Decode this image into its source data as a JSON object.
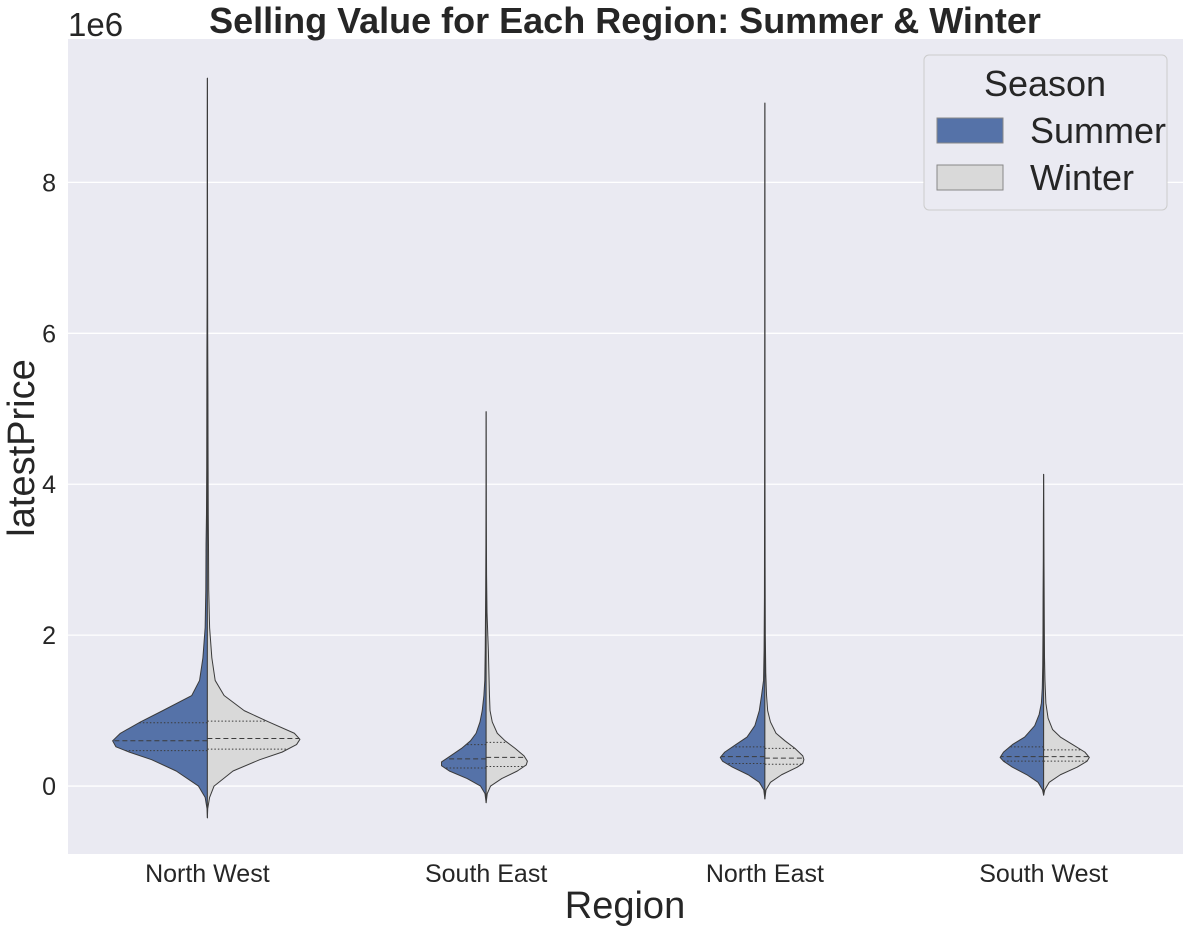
{
  "chart_data": {
    "type": "violin",
    "title": "Selling Value for Each Region: Summer & Winter",
    "xlabel": "Region",
    "ylabel": "latestPrice",
    "y_offset_label": "1e6",
    "categories": [
      "North West",
      "South East",
      "North East",
      "South West"
    ],
    "ylim": [
      -0.9,
      9.9
    ],
    "yticks": [
      0,
      2,
      4,
      6,
      8
    ],
    "yunit_multiplier": 1000000,
    "grid": true,
    "split": true,
    "inner": "quartile",
    "legend": {
      "title": "Season",
      "position": "top-right",
      "entries": [
        "Summer",
        "Winter"
      ]
    },
    "colors": {
      "background": "#eaeaf2",
      "grid": "#ffffff",
      "Summer": "#5572a8",
      "Winter": "#d9d9d9",
      "outline": "#3b3b3b"
    },
    "series": [
      {
        "name": "Summer",
        "quartiles": [
          [
            0.47,
            0.6,
            0.84
          ],
          [
            0.24,
            0.36,
            0.55
          ],
          [
            0.3,
            0.39,
            0.52
          ],
          [
            0.33,
            0.39,
            0.52
          ]
        ],
        "profiles": [
          [
            [
              -0.42,
              0
            ],
            [
              -0.3,
              0.003
            ],
            [
              -0.15,
              0.02
            ],
            [
              0,
              0.08
            ],
            [
              0.2,
              0.28
            ],
            [
              0.35,
              0.5
            ],
            [
              0.45,
              0.7
            ],
            [
              0.52,
              0.82
            ],
            [
              0.6,
              0.85
            ],
            [
              0.7,
              0.78
            ],
            [
              0.85,
              0.6
            ],
            [
              1.0,
              0.4
            ],
            [
              1.2,
              0.14
            ],
            [
              1.4,
              0.07
            ],
            [
              1.7,
              0.04
            ],
            [
              2.1,
              0.02
            ],
            [
              2.6,
              0.014
            ],
            [
              3.2,
              0.012
            ],
            [
              3.6,
              0.008
            ],
            [
              4.2,
              0.006
            ],
            [
              5.0,
              0.005
            ],
            [
              5.8,
              0.004
            ],
            [
              6.5,
              0.002
            ],
            [
              7.5,
              0.001
            ],
            [
              8.5,
              0.001
            ],
            [
              9.38,
              0
            ]
          ],
          [
            [
              -0.22,
              0
            ],
            [
              -0.1,
              0.01
            ],
            [
              0,
              0.05
            ],
            [
              0.1,
              0.17
            ],
            [
              0.2,
              0.33
            ],
            [
              0.27,
              0.4
            ],
            [
              0.32,
              0.4
            ],
            [
              0.4,
              0.32
            ],
            [
              0.5,
              0.22
            ],
            [
              0.6,
              0.14
            ],
            [
              0.7,
              0.09
            ],
            [
              0.85,
              0.055
            ],
            [
              1.0,
              0.035
            ],
            [
              1.2,
              0.02
            ],
            [
              1.4,
              0.012
            ],
            [
              1.8,
              0.008
            ],
            [
              2.2,
              0.006
            ],
            [
              2.6,
              0.004
            ],
            [
              3.2,
              0.002
            ],
            [
              4.0,
              0.001
            ],
            [
              4.96,
              0
            ]
          ],
          [
            [
              -0.17,
              0
            ],
            [
              -0.05,
              0.01
            ],
            [
              0.05,
              0.05
            ],
            [
              0.15,
              0.15
            ],
            [
              0.25,
              0.29
            ],
            [
              0.33,
              0.38
            ],
            [
              0.38,
              0.4
            ],
            [
              0.45,
              0.36
            ],
            [
              0.55,
              0.26
            ],
            [
              0.65,
              0.16
            ],
            [
              0.8,
              0.09
            ],
            [
              1.0,
              0.05
            ],
            [
              1.2,
              0.03
            ],
            [
              1.4,
              0.012
            ],
            [
              1.8,
              0.007
            ],
            [
              2.5,
              0.004
            ],
            [
              3.5,
              0.003
            ],
            [
              4.5,
              0.002
            ],
            [
              6,
              0.001
            ],
            [
              7.5,
              0.001
            ],
            [
              9.05,
              0
            ]
          ],
          [
            [
              -0.12,
              0
            ],
            [
              -0.05,
              0.01
            ],
            [
              0.05,
              0.05
            ],
            [
              0.15,
              0.15
            ],
            [
              0.25,
              0.28
            ],
            [
              0.33,
              0.36
            ],
            [
              0.38,
              0.39
            ],
            [
              0.45,
              0.36
            ],
            [
              0.55,
              0.28
            ],
            [
              0.65,
              0.17
            ],
            [
              0.8,
              0.08
            ],
            [
              0.95,
              0.04
            ],
            [
              1.1,
              0.02
            ],
            [
              1.3,
              0.012
            ],
            [
              1.6,
              0.008
            ],
            [
              2.0,
              0.006
            ],
            [
              2.5,
              0.005
            ],
            [
              3.0,
              0.003
            ],
            [
              3.6,
              0.002
            ],
            [
              4.13,
              0
            ]
          ]
        ]
      },
      {
        "name": "Winter",
        "quartiles": [
          [
            0.49,
            0.63,
            0.86
          ],
          [
            0.26,
            0.38,
            0.58
          ],
          [
            0.29,
            0.37,
            0.5
          ],
          [
            0.33,
            0.39,
            0.48
          ]
        ],
        "profiles": [
          [
            [
              -0.42,
              0
            ],
            [
              -0.3,
              0.003
            ],
            [
              -0.15,
              0.02
            ],
            [
              0,
              0.06
            ],
            [
              0.2,
              0.23
            ],
            [
              0.35,
              0.47
            ],
            [
              0.45,
              0.67
            ],
            [
              0.55,
              0.8
            ],
            [
              0.62,
              0.83
            ],
            [
              0.7,
              0.78
            ],
            [
              0.85,
              0.55
            ],
            [
              1.0,
              0.33
            ],
            [
              1.2,
              0.15
            ],
            [
              1.4,
              0.07
            ],
            [
              1.7,
              0.04
            ],
            [
              2.1,
              0.02
            ],
            [
              2.6,
              0.012
            ],
            [
              3.2,
              0.01
            ],
            [
              3.6,
              0.008
            ],
            [
              4.5,
              0.006
            ],
            [
              5.2,
              0.005
            ],
            [
              6.0,
              0.003
            ],
            [
              7.0,
              0.002
            ],
            [
              8.0,
              0.001
            ],
            [
              9.0,
              0.001
            ],
            [
              9.38,
              0
            ]
          ],
          [
            [
              -0.22,
              0
            ],
            [
              -0.1,
              0.01
            ],
            [
              0,
              0.04
            ],
            [
              0.1,
              0.14
            ],
            [
              0.2,
              0.28
            ],
            [
              0.28,
              0.36
            ],
            [
              0.33,
              0.37
            ],
            [
              0.4,
              0.34
            ],
            [
              0.5,
              0.26
            ],
            [
              0.6,
              0.17
            ],
            [
              0.7,
              0.1
            ],
            [
              0.85,
              0.055
            ],
            [
              1.0,
              0.035
            ],
            [
              1.2,
              0.03
            ],
            [
              1.5,
              0.025
            ],
            [
              1.8,
              0.02
            ],
            [
              2.0,
              0.015
            ],
            [
              2.3,
              0.008
            ],
            [
              2.8,
              0.004
            ],
            [
              3.5,
              0.002
            ],
            [
              4.2,
              0.001
            ],
            [
              4.96,
              0
            ]
          ],
          [
            [
              -0.17,
              0
            ],
            [
              -0.05,
              0.01
            ],
            [
              0.05,
              0.05
            ],
            [
              0.15,
              0.15
            ],
            [
              0.25,
              0.29
            ],
            [
              0.3,
              0.34
            ],
            [
              0.35,
              0.35
            ],
            [
              0.4,
              0.34
            ],
            [
              0.5,
              0.27
            ],
            [
              0.6,
              0.18
            ],
            [
              0.7,
              0.1
            ],
            [
              0.85,
              0.05
            ],
            [
              1.0,
              0.025
            ],
            [
              1.2,
              0.015
            ],
            [
              1.5,
              0.008
            ],
            [
              2.0,
              0.004
            ],
            [
              3.0,
              0.002
            ],
            [
              4.5,
              0.001
            ],
            [
              6.5,
              0.001
            ],
            [
              9.05,
              0
            ]
          ],
          [
            [
              -0.12,
              0
            ],
            [
              -0.05,
              0.01
            ],
            [
              0.05,
              0.05
            ],
            [
              0.15,
              0.15
            ],
            [
              0.25,
              0.3
            ],
            [
              0.33,
              0.39
            ],
            [
              0.38,
              0.41
            ],
            [
              0.45,
              0.37
            ],
            [
              0.55,
              0.26
            ],
            [
              0.65,
              0.15
            ],
            [
              0.75,
              0.08
            ],
            [
              0.9,
              0.04
            ],
            [
              1.1,
              0.02
            ],
            [
              1.4,
              0.012
            ],
            [
              1.7,
              0.008
            ],
            [
              2.2,
              0.006
            ],
            [
              2.8,
              0.004
            ],
            [
              3.4,
              0.002
            ],
            [
              4.13,
              0
            ]
          ]
        ]
      }
    ]
  }
}
